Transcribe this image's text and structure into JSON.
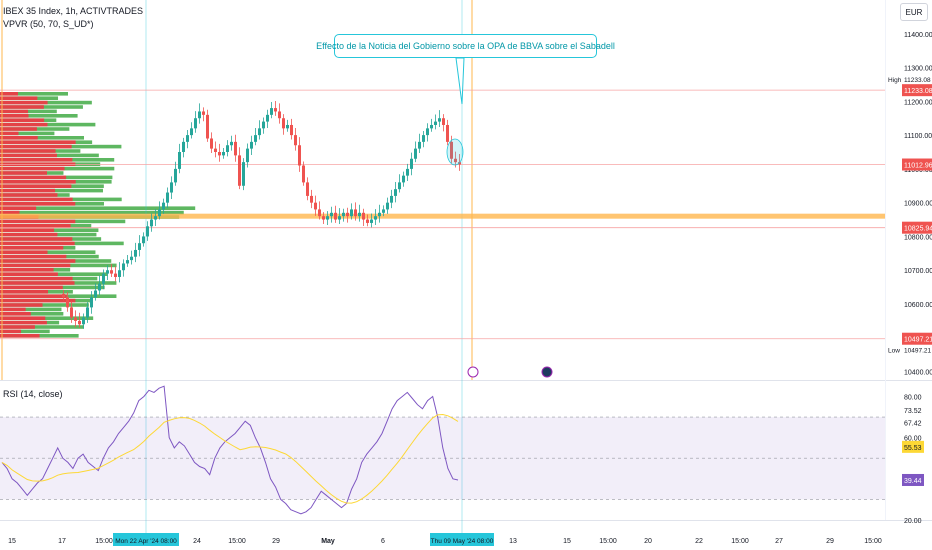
{
  "header": {
    "symbol_line": "IBEX 35 Index, 1h, ACTIVTRADES",
    "indicator_line": "VPVR (50, 70, S_UD*)",
    "currency_button": "EUR",
    "rsi_label": "RSI (14, close)"
  },
  "annotation": {
    "text": "Effecto de la Noticia del Gobierno sobre la OPA de BBVA sobre el Sabadell"
  },
  "price_axis": {
    "ticks": [
      "11400.00",
      "11300.00",
      "11200.00",
      "11100.00",
      "11000.00",
      "10900.00",
      "10800.00",
      "10700.00",
      "10600.00",
      "10500.00",
      "10400.00"
    ],
    "high_label": "High",
    "high_value": "11233.08",
    "low_label": "Low",
    "low_value": "10497.21",
    "badges": [
      "11233.08",
      "11012.96",
      "10825.94",
      "10497.21"
    ]
  },
  "rsi_axis": {
    "ticks": [
      "80.00",
      "73.52",
      "67.42",
      "60.00",
      "20.00"
    ],
    "badge_ma": "55.53",
    "badge_rsi": "39.44"
  },
  "time_axis": {
    "labels": [
      "15",
      "17",
      "15:00",
      "24",
      "15:00",
      "29",
      "May",
      "6",
      "13",
      "15",
      "15:00",
      "20",
      "22",
      "15:00",
      "27",
      "29",
      "15:00"
    ],
    "highlight_left": "Mon 22 Apr '24   08:00",
    "highlight_right": "Thu 09 May '24   08:00"
  },
  "colors": {
    "bull": "#26a69a",
    "bear": "#ef5350",
    "vp_green": "#4caf50",
    "vp_red": "#f23645",
    "poc_line": "#ffb74d",
    "rsi_line": "#7e57c2",
    "rsi_ma": "#fdd835",
    "accent": "#26c6da"
  },
  "chart_data": [
    {
      "type": "candlestick",
      "title": "IBEX 35 Index, 1h, ACTIVTRADES",
      "ylim": [
        10375,
        11500
      ],
      "high": 11233.08,
      "low": 10497.21,
      "last": 11012.96,
      "levels": [
        11233.08,
        11012.96,
        10825.94,
        10497.21
      ],
      "point_of_control": 10860,
      "closes": [
        10620,
        10590,
        10560,
        10550,
        10540,
        10560,
        10590,
        10620,
        10640,
        10660,
        10690,
        10700,
        10690,
        10680,
        10700,
        10720,
        10730,
        10740,
        10760,
        10780,
        10800,
        10830,
        10850,
        10860,
        10880,
        10900,
        10930,
        10960,
        11000,
        11050,
        11080,
        11100,
        11120,
        11150,
        11170,
        11160,
        11090,
        11060,
        11050,
        11040,
        11050,
        11070,
        11080,
        11040,
        10950,
        11020,
        11060,
        11080,
        11100,
        11120,
        11140,
        11160,
        11180,
        11170,
        11150,
        11120,
        11130,
        11100,
        11070,
        11010,
        10960,
        10920,
        10900,
        10880,
        10860,
        10850,
        10860,
        10870,
        10850,
        10860,
        10870,
        10860,
        10880,
        10860,
        10870,
        10850,
        10840,
        10850,
        10860,
        10870,
        10880,
        10900,
        10920,
        10940,
        10960,
        10980,
        11000,
        11030,
        11060,
        11080,
        11100,
        11120,
        11130,
        11140,
        11150,
        11130,
        11080,
        11030,
        11020,
        11012.96
      ]
    },
    {
      "type": "line",
      "title": "RSI (14, close)",
      "ylim": [
        20,
        88
      ],
      "bands": [
        30,
        70
      ],
      "last": 39.44,
      "ma_last": 55.53,
      "values": [
        48,
        45,
        40,
        38,
        35,
        32,
        35,
        38,
        40,
        45,
        50,
        55,
        50,
        48,
        45,
        50,
        52,
        48,
        46,
        44,
        50,
        55,
        58,
        62,
        65,
        68,
        72,
        78,
        80,
        83,
        82,
        84,
        85,
        60,
        55,
        58,
        56,
        52,
        48,
        46,
        45,
        42,
        50,
        55,
        58,
        60,
        62,
        65,
        68,
        66,
        60,
        55,
        48,
        40,
        36,
        30,
        28,
        25,
        24,
        23,
        24,
        26,
        30,
        34,
        32,
        30,
        28,
        26,
        28,
        35,
        40,
        48,
        52,
        55,
        58,
        62,
        68,
        74,
        78,
        80,
        82,
        79,
        76,
        74,
        78,
        80,
        70,
        55,
        45,
        40,
        39.44
      ]
    }
  ]
}
